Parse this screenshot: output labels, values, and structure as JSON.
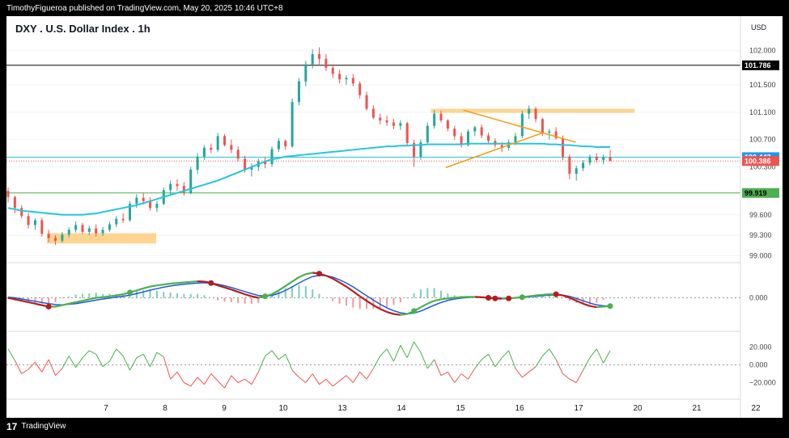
{
  "header": {
    "published_by": "TimothyFigueroa published on TradingView.com, May 20, 2025 10:46 UTC+8"
  },
  "footer": {
    "logo_glyph": "17",
    "brand": "TradingView"
  },
  "chart_data": {
    "type": "candlestick",
    "title": "DXY . U.S. Dollar Index . 1h",
    "currency": "USD",
    "price_axis": {
      "range": [
        98.9,
        102.15
      ],
      "ticks": [
        {
          "value": 102.0,
          "label": "102.000"
        },
        {
          "value": 101.5,
          "label": "101.500"
        },
        {
          "value": 101.1,
          "label": "101.100"
        },
        {
          "value": 100.7,
          "label": "100.700"
        },
        {
          "value": 100.3,
          "label": "100.300"
        },
        {
          "value": 99.6,
          "label": "99.600"
        },
        {
          "value": 99.3,
          "label": "99.300"
        },
        {
          "value": 99.0,
          "label": "99.000"
        }
      ]
    },
    "time_axis": {
      "labels": [
        {
          "label": "7",
          "day": 1.0
        },
        {
          "label": "8",
          "day": 2.0
        },
        {
          "label": "9",
          "day": 3.0
        },
        {
          "label": "10",
          "day": 4.0
        },
        {
          "label": "13",
          "day": 5.0
        },
        {
          "label": "14",
          "day": 6.0
        },
        {
          "label": "15",
          "day": 7.0
        },
        {
          "label": "16",
          "day": 8.0
        },
        {
          "label": "17",
          "day": 9.0
        },
        {
          "label": "20",
          "day": 10.0
        },
        {
          "label": "21",
          "day": 11.0
        },
        {
          "label": "22",
          "day": 12.0
        }
      ]
    },
    "price_labels": [
      {
        "text": "101.786",
        "value": 101.786,
        "bg": "#000000",
        "fg": "#ffffff"
      },
      {
        "text": "100.443",
        "value": 100.443,
        "bg": "#2196f3",
        "fg": "#ffffff"
      },
      {
        "text": "100.386",
        "value": 100.386,
        "bg": "#ef5350",
        "fg": "#ffffff"
      },
      {
        "text": "99.919",
        "value": 99.919,
        "bg": "#4caf50",
        "fg": "#000000"
      }
    ],
    "horizontal_lines": [
      {
        "value": 101.786,
        "color": "#000000"
      },
      {
        "value": 100.443,
        "color": "#26c6da"
      },
      {
        "value": 100.386,
        "color": "#ef5350",
        "dotted": true
      },
      {
        "value": 99.919,
        "color": "#4caf50"
      }
    ],
    "zones": [
      {
        "day_start": 0.0,
        "day_end": 1.85,
        "low": 99.18,
        "high": 99.33,
        "color": "#ffcc80"
      },
      {
        "day_start": 6.5,
        "day_end": 9.95,
        "low": 101.09,
        "high": 101.15,
        "color": "#ffcc80"
      }
    ],
    "trendlines": [
      {
        "points": [
          [
            7.05,
            101.13
          ],
          [
            8.95,
            100.66
          ]
        ],
        "color": "#f39c12"
      },
      {
        "points": [
          [
            6.75,
            100.29
          ],
          [
            8.4,
            100.8
          ]
        ],
        "color": "#f39c12"
      }
    ],
    "candles_ohlc": [
      [
        99.95,
        100.0,
        99.78,
        99.86
      ],
      [
        99.86,
        99.88,
        99.62,
        99.7
      ],
      [
        99.7,
        99.74,
        99.55,
        99.58
      ],
      [
        99.58,
        99.63,
        99.4,
        99.45
      ],
      [
        99.45,
        99.55,
        99.38,
        99.52
      ],
      [
        99.52,
        99.56,
        99.28,
        99.32
      ],
      [
        99.32,
        99.38,
        99.2,
        99.26
      ],
      [
        99.26,
        99.3,
        99.16,
        99.22
      ],
      [
        99.22,
        99.35,
        99.19,
        99.31
      ],
      [
        99.31,
        99.42,
        99.27,
        99.38
      ],
      [
        99.38,
        99.5,
        99.34,
        99.45
      ],
      [
        99.45,
        99.48,
        99.32,
        99.35
      ],
      [
        99.35,
        99.44,
        99.3,
        99.4
      ],
      [
        99.4,
        99.46,
        99.28,
        99.33
      ],
      [
        99.33,
        99.42,
        99.29,
        99.38
      ],
      [
        99.38,
        99.5,
        99.35,
        99.46
      ],
      [
        99.46,
        99.58,
        99.42,
        99.54
      ],
      [
        99.54,
        99.62,
        99.48,
        99.52
      ],
      [
        99.52,
        99.8,
        99.5,
        99.76
      ],
      [
        99.76,
        99.9,
        99.7,
        99.85
      ],
      [
        99.85,
        99.92,
        99.75,
        99.8
      ],
      [
        99.8,
        99.86,
        99.66,
        99.7
      ],
      [
        99.7,
        99.8,
        99.64,
        99.76
      ],
      [
        99.76,
        100.0,
        99.74,
        99.96
      ],
      [
        99.96,
        100.1,
        99.9,
        100.05
      ],
      [
        100.05,
        100.12,
        99.95,
        100.02
      ],
      [
        100.02,
        100.08,
        99.88,
        99.92
      ],
      [
        99.92,
        100.3,
        99.9,
        100.26
      ],
      [
        100.26,
        100.5,
        100.2,
        100.45
      ],
      [
        100.45,
        100.62,
        100.4,
        100.58
      ],
      [
        100.58,
        100.64,
        100.5,
        100.55
      ],
      [
        100.55,
        100.8,
        100.52,
        100.75
      ],
      [
        100.75,
        100.78,
        100.6,
        100.62
      ],
      [
        100.62,
        100.7,
        100.5,
        100.55
      ],
      [
        100.55,
        100.6,
        100.38,
        100.42
      ],
      [
        100.42,
        100.46,
        100.22,
        100.26
      ],
      [
        100.26,
        100.35,
        100.16,
        100.3
      ],
      [
        100.3,
        100.42,
        100.24,
        100.38
      ],
      [
        100.38,
        100.45,
        100.28,
        100.34
      ],
      [
        100.34,
        100.6,
        100.3,
        100.56
      ],
      [
        100.56,
        100.72,
        100.52,
        100.68
      ],
      [
        100.68,
        100.7,
        100.55,
        100.6
      ],
      [
        100.6,
        101.3,
        100.58,
        101.25
      ],
      [
        101.25,
        101.6,
        101.2,
        101.55
      ],
      [
        101.55,
        101.85,
        101.48,
        101.8
      ],
      [
        101.8,
        102.02,
        101.74,
        101.95
      ],
      [
        101.95,
        102.05,
        101.8,
        101.88
      ],
      [
        101.88,
        101.95,
        101.7,
        101.75
      ],
      [
        101.75,
        101.8,
        101.6,
        101.66
      ],
      [
        101.66,
        101.72,
        101.52,
        101.58
      ],
      [
        101.58,
        101.64,
        101.5,
        101.6
      ],
      [
        101.6,
        101.66,
        101.48,
        101.52
      ],
      [
        101.52,
        101.55,
        101.3,
        101.35
      ],
      [
        101.35,
        101.4,
        101.12,
        101.15
      ],
      [
        101.15,
        101.2,
        101.0,
        101.02
      ],
      [
        101.02,
        101.08,
        100.92,
        100.98
      ],
      [
        100.98,
        101.05,
        100.9,
        100.95
      ],
      [
        100.95,
        101.0,
        100.85,
        100.9
      ],
      [
        100.9,
        100.98,
        100.84,
        100.94
      ],
      [
        100.94,
        100.96,
        100.6,
        100.65
      ],
      [
        100.65,
        100.7,
        100.3,
        100.45
      ],
      [
        100.45,
        100.7,
        100.4,
        100.66
      ],
      [
        100.66,
        100.95,
        100.62,
        100.9
      ],
      [
        100.9,
        101.13,
        100.86,
        101.08
      ],
      [
        101.08,
        101.12,
        100.95,
        100.98
      ],
      [
        100.98,
        101.0,
        100.82,
        100.86
      ],
      [
        100.86,
        100.9,
        100.7,
        100.75
      ],
      [
        100.75,
        100.8,
        100.58,
        100.62
      ],
      [
        100.62,
        100.85,
        100.6,
        100.82
      ],
      [
        100.82,
        100.9,
        100.75,
        100.88
      ],
      [
        100.88,
        100.92,
        100.72,
        100.76
      ],
      [
        100.76,
        100.8,
        100.64,
        100.68
      ],
      [
        100.68,
        100.72,
        100.58,
        100.62
      ],
      [
        100.62,
        100.66,
        100.52,
        100.58
      ],
      [
        100.58,
        100.7,
        100.54,
        100.66
      ],
      [
        100.66,
        100.8,
        100.62,
        100.75
      ],
      [
        100.75,
        101.12,
        100.72,
        101.08
      ],
      [
        101.08,
        101.2,
        101.0,
        101.15
      ],
      [
        101.15,
        101.18,
        100.95,
        101.0
      ],
      [
        101.0,
        101.02,
        100.75,
        100.8
      ],
      [
        100.8,
        100.86,
        100.7,
        100.82
      ],
      [
        100.82,
        100.88,
        100.7,
        100.72
      ],
      [
        100.72,
        100.76,
        100.4,
        100.45
      ],
      [
        100.45,
        100.48,
        100.12,
        100.2
      ],
      [
        100.2,
        100.32,
        100.1,
        100.28
      ],
      [
        100.28,
        100.4,
        100.24,
        100.36
      ],
      [
        100.36,
        100.48,
        100.32,
        100.45
      ],
      [
        100.45,
        100.5,
        100.36,
        100.4
      ],
      [
        100.4,
        100.48,
        100.34,
        100.44
      ],
      [
        100.44,
        100.55,
        100.38,
        100.39
      ]
    ],
    "series": [
      {
        "name": "SMA",
        "color": "#26c6da",
        "values": [
          99.7,
          99.68,
          99.66,
          99.65,
          99.64,
          99.63,
          99.62,
          99.61,
          99.6,
          99.6,
          99.6,
          99.6,
          99.61,
          99.62,
          99.64,
          99.66,
          99.68,
          99.7,
          99.72,
          99.74,
          99.77,
          99.8,
          99.83,
          99.86,
          99.89,
          99.92,
          99.95,
          99.98,
          100.01,
          100.04,
          100.07,
          100.1,
          100.14,
          100.18,
          100.22,
          100.26,
          100.3,
          100.34,
          100.38,
          100.41,
          100.43,
          100.45,
          100.46,
          100.47,
          100.48,
          100.49,
          100.5,
          100.51,
          100.52,
          100.53,
          100.54,
          100.55,
          100.56,
          100.57,
          100.58,
          100.59,
          100.6,
          100.6,
          100.61,
          100.61,
          100.62,
          100.62,
          100.63,
          100.63,
          100.63,
          100.63,
          100.63,
          100.63,
          100.64,
          100.64,
          100.64,
          100.64,
          100.64,
          100.64,
          100.64,
          100.64,
          100.64,
          100.64,
          100.64,
          100.64,
          100.63,
          100.63,
          100.62,
          100.62,
          100.61,
          100.6,
          100.6,
          100.59,
          100.59,
          100.59
        ]
      }
    ],
    "oscillator1": {
      "zero_label": "0.000",
      "range": [
        -1.0,
        1.0
      ],
      "fast": [
        0.0,
        -0.05,
        -0.1,
        -0.15,
        -0.2,
        -0.25,
        -0.3,
        -0.3,
        -0.25,
        -0.2,
        -0.15,
        -0.1,
        -0.05,
        0.0,
        0.02,
        0.05,
        0.08,
        0.12,
        0.18,
        0.25,
        0.32,
        0.38,
        0.42,
        0.45,
        0.48,
        0.5,
        0.52,
        0.54,
        0.56,
        0.55,
        0.5,
        0.42,
        0.35,
        0.28,
        0.2,
        0.12,
        0.05,
        0.0,
        0.05,
        0.12,
        0.25,
        0.4,
        0.55,
        0.7,
        0.8,
        0.85,
        0.82,
        0.75,
        0.65,
        0.52,
        0.38,
        0.22,
        0.05,
        -0.1,
        -0.25,
        -0.38,
        -0.48,
        -0.55,
        -0.58,
        -0.55,
        -0.45,
        -0.32,
        -0.2,
        -0.1,
        -0.05,
        -0.02,
        0.0,
        0.02,
        0.03,
        0.03,
        0.02,
        0.0,
        -0.02,
        -0.03,
        -0.02,
        0.0,
        0.02,
        0.05,
        0.08,
        0.1,
        0.12,
        0.12,
        0.08,
        0.0,
        -0.1,
        -0.2,
        -0.28,
        -0.32,
        -0.3,
        -0.28
      ],
      "slow": [
        0.02,
        0.0,
        -0.04,
        -0.08,
        -0.12,
        -0.16,
        -0.2,
        -0.23,
        -0.24,
        -0.22,
        -0.2,
        -0.16,
        -0.12,
        -0.08,
        -0.04,
        -0.01,
        0.02,
        0.05,
        0.09,
        0.14,
        0.2,
        0.26,
        0.31,
        0.36,
        0.4,
        0.43,
        0.46,
        0.48,
        0.5,
        0.51,
        0.5,
        0.46,
        0.41,
        0.35,
        0.28,
        0.21,
        0.14,
        0.08,
        0.06,
        0.08,
        0.15,
        0.25,
        0.37,
        0.5,
        0.62,
        0.72,
        0.76,
        0.75,
        0.7,
        0.61,
        0.5,
        0.37,
        0.22,
        0.07,
        -0.08,
        -0.22,
        -0.34,
        -0.44,
        -0.51,
        -0.54,
        -0.52,
        -0.45,
        -0.35,
        -0.25,
        -0.16,
        -0.09,
        -0.04,
        -0.01,
        0.01,
        0.02,
        0.02,
        0.01,
        0.0,
        -0.01,
        -0.01,
        0.0,
        0.01,
        0.03,
        0.05,
        0.07,
        0.09,
        0.1,
        0.09,
        0.05,
        -0.02,
        -0.1,
        -0.18,
        -0.24,
        -0.27,
        -0.28
      ],
      "cross_markers": [
        {
          "index": 6,
          "color": "#b71c1c"
        },
        {
          "index": 18,
          "color": "#4caf50"
        },
        {
          "index": 30,
          "color": "#b71c1c"
        },
        {
          "index": 38,
          "color": "#4caf50"
        },
        {
          "index": 46,
          "color": "#b71c1c"
        },
        {
          "index": 60,
          "color": "#4caf50"
        },
        {
          "index": 71,
          "color": "#b71c1c"
        },
        {
          "index": 72,
          "color": "#b71c1c"
        },
        {
          "index": 74,
          "color": "#b71c1c"
        },
        {
          "index": 76,
          "color": "#4caf50"
        },
        {
          "index": 81,
          "color": "#b71c1c"
        },
        {
          "index": 89,
          "color": "#4caf50"
        }
      ]
    },
    "oscillator2": {
      "range": [
        -35,
        35
      ],
      "ticks": [
        {
          "value": 20,
          "label": "20.000"
        },
        {
          "value": 0,
          "label": "0.000"
        },
        {
          "value": -20,
          "label": "−20.000"
        }
      ],
      "values": [
        18,
        5,
        -10,
        -5,
        3,
        -8,
        6,
        -12,
        -4,
        10,
        -3,
        8,
        16,
        12,
        -2,
        4,
        18,
        10,
        -6,
        8,
        12,
        -2,
        14,
        9,
        -16,
        -8,
        -20,
        -24,
        -14,
        -22,
        -10,
        -18,
        -26,
        -12,
        -20,
        -16,
        -22,
        -8,
        10,
        16,
        6,
        12,
        -6,
        -14,
        -20,
        -10,
        -22,
        -16,
        -24,
        -18,
        -12,
        -20,
        -8,
        -16,
        -4,
        10,
        18,
        4,
        22,
        8,
        26,
        14,
        -4,
        6,
        -12,
        -8,
        -20,
        -10,
        -16,
        -4,
        6,
        12,
        -2,
        8,
        16,
        -4,
        -14,
        -8,
        -2,
        10,
        18,
        6,
        -10,
        -16,
        -20,
        -6,
        8,
        18,
        2,
        16
      ]
    }
  }
}
